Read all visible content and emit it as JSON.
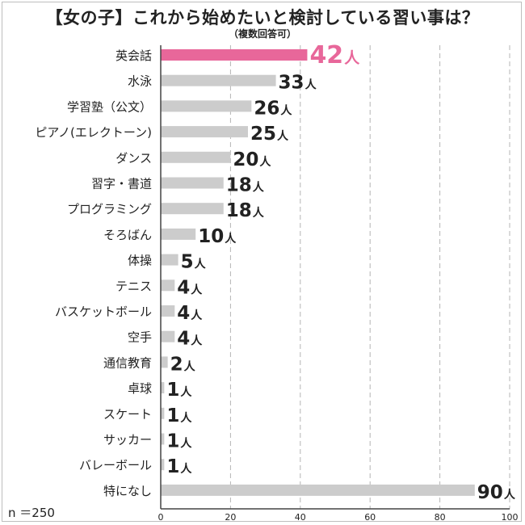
{
  "title": "【女の子】これから始めたいと検討している習い事は？",
  "subtitle": "（複数回答可）",
  "sample": "n ＝250",
  "colors": {
    "highlight": "#e8679a",
    "bar": "#cccccc",
    "axis": "#444444",
    "grid": "#b5b5b5",
    "text": "#222222"
  },
  "chart_data": {
    "type": "bar",
    "orientation": "horizontal",
    "unit": "人",
    "categories": [
      "英会話",
      "水泳",
      "学習塾（公文）",
      "ピアノ(エレクトーン)",
      "ダンス",
      "習字・書道",
      "プログラミング",
      "そろばん",
      "体操",
      "テニス",
      "バスケットボール",
      "空手",
      "通信教育",
      "卓球",
      "スケート",
      "サッカー",
      "バレーボール",
      "特になし"
    ],
    "values": [
      42,
      33,
      26,
      25,
      20,
      18,
      18,
      10,
      5,
      4,
      4,
      4,
      2,
      1,
      1,
      1,
      1,
      90
    ],
    "highlight_index": 0,
    "xlim": [
      0,
      100
    ],
    "xticks": [
      0,
      20,
      40,
      60,
      80,
      100
    ],
    "grid": "vertical dashed"
  }
}
